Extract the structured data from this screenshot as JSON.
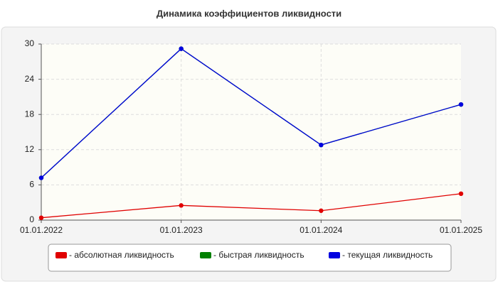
{
  "chart_data": {
    "type": "line",
    "title": "Динамика коэффициентов ликвидности",
    "categories": [
      "01.01.2022",
      "01.01.2023",
      "01.01.2024",
      "01.01.2025"
    ],
    "series": [
      {
        "name": "- абсолютная ликвидность",
        "color": "#e00000",
        "values": [
          0.4,
          2.5,
          1.6,
          4.5
        ]
      },
      {
        "name": "- быстрая ликвидность",
        "color": "#008000",
        "values": [
          7.2,
          29.2,
          12.8,
          19.7
        ]
      },
      {
        "name": "- текущая ликвидность",
        "color": "#0000e0",
        "values": [
          7.2,
          29.2,
          12.8,
          19.7
        ]
      }
    ],
    "ylim": [
      0,
      30
    ],
    "yticks": [
      0,
      6,
      12,
      18,
      24,
      30
    ],
    "grid": true
  }
}
